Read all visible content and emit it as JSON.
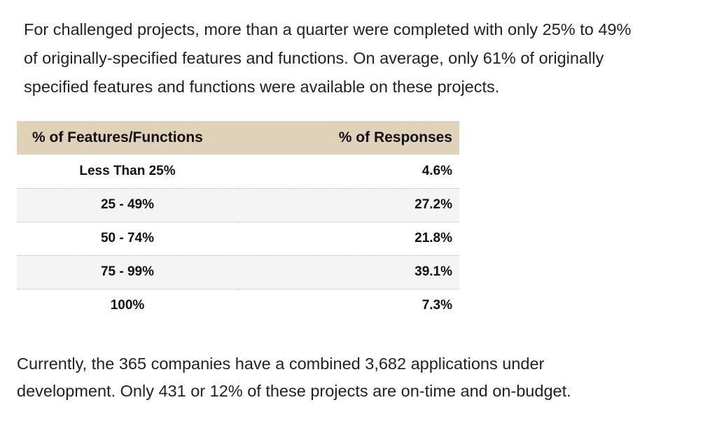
{
  "intro": {
    "lines": [
      "For challenged projects, more than a quarter were completed with only 25% to 49%",
      "of originally-specified features and functions. On average, only 61% of originally",
      "specified features and functions were available on these projects."
    ]
  },
  "table": {
    "headers": {
      "features": "% of Features/Functions",
      "responses": "% of Responses"
    },
    "header_color": "#e0d2b9",
    "stripe_color": "#f4f4f4",
    "rows": [
      {
        "features": "Less Than 25%",
        "responses": "4.6%"
      },
      {
        "features": "25 - 49%",
        "responses": "27.2%"
      },
      {
        "features": "50 - 74%",
        "responses": "21.8%"
      },
      {
        "features": "75 - 99%",
        "responses": "39.1%"
      },
      {
        "features": "100%",
        "responses": "7.3%"
      }
    ]
  },
  "outro": {
    "lines": [
      "Currently, the 365 companies have a combined 3,682 applications under",
      "development. Only 431 or 12% of these projects are on-time and on-budget."
    ]
  }
}
